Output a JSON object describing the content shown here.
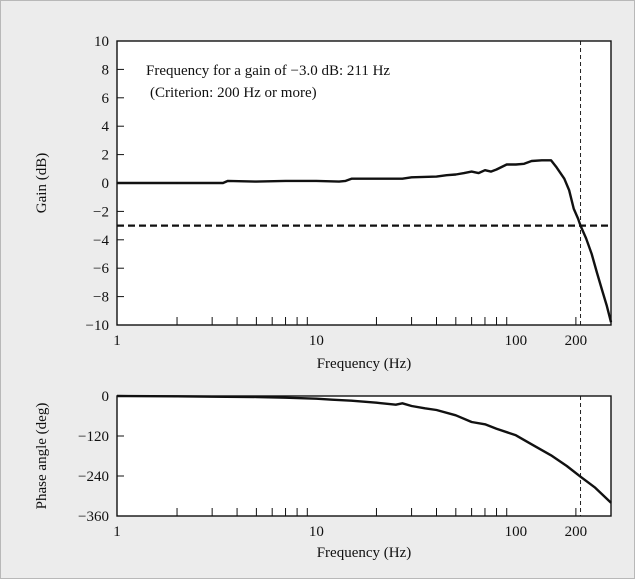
{
  "chart_data": [
    {
      "type": "line",
      "name": "gain",
      "xscale": "log",
      "xlim": [
        1,
        300
      ],
      "ylim": [
        -10,
        10
      ],
      "xlabel": "Frequency (Hz)",
      "ylabel": "Gain (dB)",
      "x_tick_labels": [
        {
          "value": 1,
          "label": "1"
        },
        {
          "value": 10,
          "label": "10"
        },
        {
          "value": 100,
          "label": "100"
        },
        {
          "value": 200,
          "label": "200"
        }
      ],
      "y_tick_labels": [
        {
          "value": 10,
          "label": "10"
        },
        {
          "value": 8,
          "label": "8"
        },
        {
          "value": 6,
          "label": "6"
        },
        {
          "value": 4,
          "label": "4"
        },
        {
          "value": 2,
          "label": "2"
        },
        {
          "value": 0,
          "label": "0"
        },
        {
          "value": -2,
          "label": "−2"
        },
        {
          "value": -4,
          "label": "−4"
        },
        {
          "value": -6,
          "label": "−6"
        },
        {
          "value": -8,
          "label": "−8"
        },
        {
          "value": -10,
          "label": "−10"
        }
      ],
      "annotations": [
        "Frequency for a gain of −3.0 dB: 211 Hz",
        "(Criterion: 200 Hz or more)"
      ],
      "reference_hline": -3.0,
      "reference_vline": 211,
      "grid": false,
      "series": [
        {
          "x": [
            1,
            2,
            3.4,
            3.6,
            5,
            7,
            10,
            13,
            14,
            15,
            20,
            27,
            30,
            40,
            45,
            50,
            55,
            60,
            65,
            70,
            75,
            80,
            90,
            100,
            110,
            120,
            135,
            150,
            160,
            175,
            185,
            195,
            205,
            211,
            225,
            240,
            255,
            270,
            285,
            300
          ],
          "y": [
            0.0,
            0.0,
            0.0,
            0.15,
            0.1,
            0.15,
            0.15,
            0.1,
            0.15,
            0.3,
            0.3,
            0.3,
            0.4,
            0.45,
            0.55,
            0.6,
            0.7,
            0.8,
            0.7,
            0.9,
            0.8,
            0.95,
            1.3,
            1.3,
            1.35,
            1.55,
            1.6,
            1.6,
            1.1,
            0.3,
            -0.5,
            -1.8,
            -2.5,
            -3.0,
            -3.9,
            -5.0,
            -6.3,
            -7.5,
            -8.6,
            -9.8
          ]
        }
      ]
    },
    {
      "type": "line",
      "name": "phase",
      "xscale": "log",
      "xlim": [
        1,
        300
      ],
      "ylim": [
        -360,
        0
      ],
      "xlabel": "Frequency (Hz)",
      "ylabel": "Phase angle (deg)",
      "x_tick_labels": [
        {
          "value": 1,
          "label": "1"
        },
        {
          "value": 10,
          "label": "10"
        },
        {
          "value": 100,
          "label": "100"
        },
        {
          "value": 200,
          "label": "200"
        }
      ],
      "y_tick_labels": [
        {
          "value": 0,
          "label": "0"
        },
        {
          "value": -120,
          "label": "−120"
        },
        {
          "value": -240,
          "label": "−240"
        },
        {
          "value": -360,
          "label": "−360"
        }
      ],
      "reference_vline": 211,
      "grid": false,
      "series": [
        {
          "x": [
            1,
            2,
            3,
            5,
            7,
            10,
            12,
            15,
            20,
            25,
            27,
            30,
            35,
            40,
            50,
            60,
            70,
            80,
            100,
            120,
            150,
            180,
            211,
            250,
            300
          ],
          "y": [
            0,
            -1,
            -2,
            -3,
            -5,
            -8,
            -11,
            -14,
            -20,
            -26,
            -22,
            -30,
            -37,
            -42,
            -58,
            -78,
            -85,
            -98,
            -118,
            -145,
            -178,
            -210,
            -242,
            -275,
            -320
          ]
        }
      ]
    }
  ]
}
